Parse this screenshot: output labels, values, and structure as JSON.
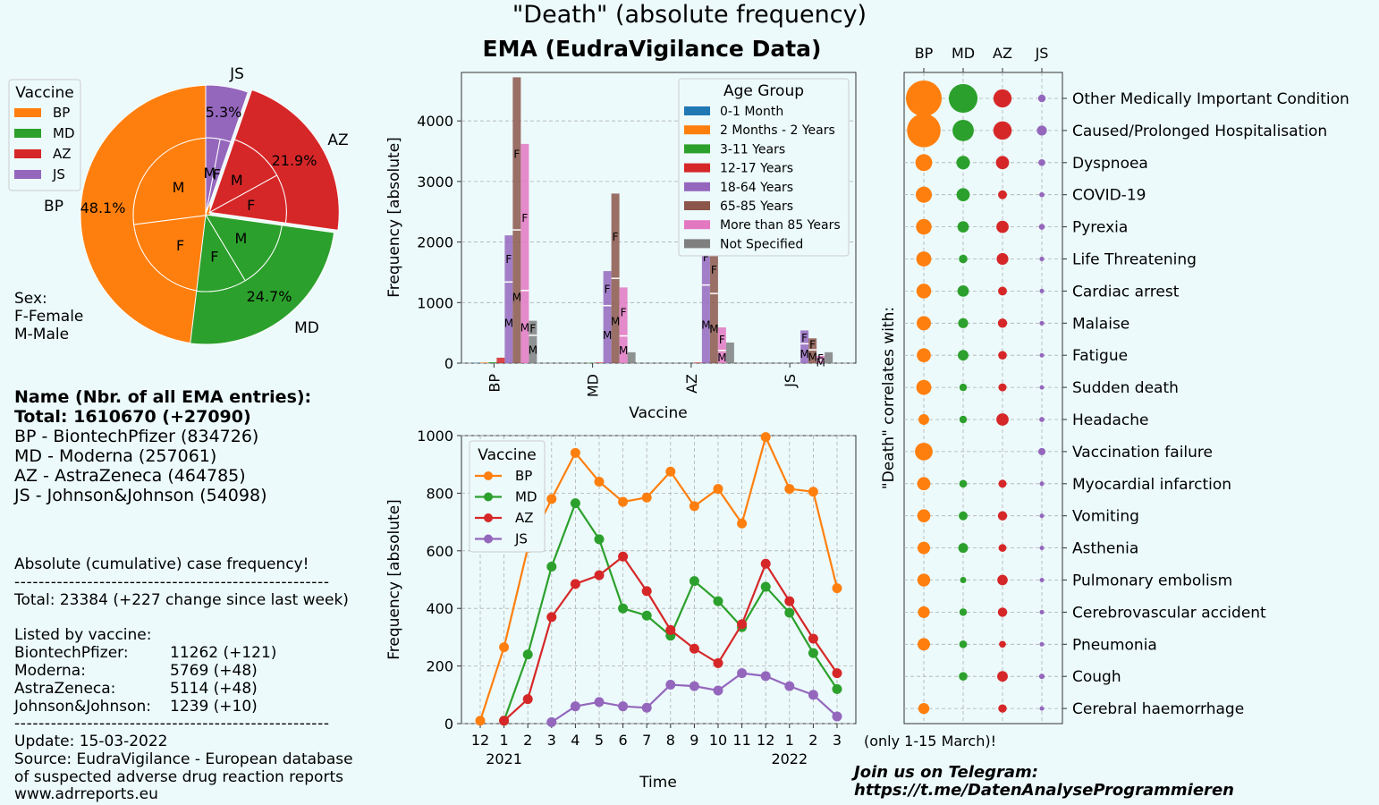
{
  "header": {
    "title": "\"Death\" (absolute frequency)",
    "subtitle": "EMA (EudraVigilance Data)"
  },
  "colors": {
    "BP": "#ff7f0e",
    "MD": "#2ca02c",
    "AZ": "#d62728",
    "JS": "#9467bd",
    "age": [
      "#1f77b4",
      "#ff7f0e",
      "#2ca02c",
      "#d62728",
      "#9467bd",
      "#8c564b",
      "#e377c2",
      "#7f7f7f"
    ]
  },
  "info": {
    "sex_label": "Sex:",
    "sex_f": "F-Female",
    "sex_m": "M-Male",
    "name_header": "Name  (Nbr. of all EMA entries):",
    "total": "Total: 1610670 (+27090)",
    "vaccines": [
      "BP - BiontechPfizer (834726)",
      "MD - Moderna (257061)",
      "AZ - AstraZeneca (464785)",
      "JS - Johnson&Johnson (54098)"
    ],
    "cumulative_label": "Absolute (cumulative) case frequency!",
    "separator": "----------------------------------------------------",
    "total_cases": "Total: 23384 (+227 change since last week)",
    "listed_by": "Listed by vaccine:",
    "by_vaccine": [
      {
        "name": "BiontechPfizer:",
        "value": "11262 (+121)"
      },
      {
        "name": "Moderna:",
        "value": "5769 (+48)"
      },
      {
        "name": "AstraZeneca:",
        "value": "5114 (+48)"
      },
      {
        "name": "Johnson&Johnson:",
        "value": "1239 (+10)"
      }
    ],
    "update": "Update: 15-03-2022",
    "source1": "Source: EudraVigilance - European database",
    "source2": "of suspected adverse drug reaction reports",
    "source3": "www.adrreports.eu",
    "telegram1": "Join us on Telegram:",
    "telegram2": "https://t.me/DatenAnalyseProgrammieren",
    "march_note": "(only 1-15 March)!"
  },
  "chart_data": [
    {
      "type": "pie",
      "legend_title": "Vaccine",
      "legend_placement": "top-left",
      "outer": [
        {
          "label": "BP",
          "value": 48.1,
          "pct_label": "48.1%"
        },
        {
          "label": "MD",
          "value": 24.7,
          "pct_label": "24.7%"
        },
        {
          "label": "AZ",
          "value": 21.9,
          "pct_label": "21.9%"
        },
        {
          "label": "JS",
          "value": 5.3,
          "pct_label": "5.3%"
        }
      ],
      "inner": [
        {
          "vaccine": "BP",
          "sex": "M",
          "value": 27.0
        },
        {
          "vaccine": "BP",
          "sex": "F",
          "value": 21.1
        },
        {
          "vaccine": "MD",
          "sex": "F",
          "value": 10.5
        },
        {
          "vaccine": "MD",
          "sex": "M",
          "value": 14.2
        },
        {
          "vaccine": "AZ",
          "sex": "F",
          "value": 10.2
        },
        {
          "vaccine": "AZ",
          "sex": "M",
          "value": 11.7
        },
        {
          "vaccine": "JS",
          "sex": "F",
          "value": 2.3
        },
        {
          "vaccine": "JS",
          "sex": "M",
          "value": 3.0
        }
      ]
    },
    {
      "type": "bar",
      "xlabel": "Vaccine",
      "ylabel": "Frequency [absolute]",
      "ylim": [
        0,
        4800
      ],
      "yticks": [
        0,
        1000,
        2000,
        3000,
        4000
      ],
      "grid": true,
      "legend_title": "Age Group",
      "legend_placement": "top-right",
      "categories": [
        "BP",
        "MD",
        "AZ",
        "JS"
      ],
      "series": [
        {
          "name": "0-1 Month",
          "values": [
            5,
            0,
            0,
            0
          ],
          "split": [
            [],
            [],
            [],
            []
          ]
        },
        {
          "name": "2 Months - 2 Years",
          "values": [
            10,
            0,
            0,
            0
          ],
          "split": [
            [],
            [],
            [],
            []
          ]
        },
        {
          "name": "3-11 Years",
          "values": [
            15,
            5,
            0,
            0
          ],
          "split": [
            [],
            [],
            [],
            []
          ]
        },
        {
          "name": "12-17 Years",
          "values": [
            90,
            10,
            10,
            0
          ],
          "split": [
            [],
            [],
            [],
            []
          ]
        },
        {
          "name": "18-64 Years",
          "values": [
            2110,
            1520,
            2220,
            540
          ],
          "split": [
            [
              1340,
              770
            ],
            [
              950,
              570
            ],
            [
              1290,
              930
            ],
            [
              320,
              220
            ]
          ]
        },
        {
          "name": "65-85 Years",
          "values": [
            4720,
            2800,
            1950,
            410
          ],
          "split": [
            [
              2200,
              2520
            ],
            [
              1400,
              1400
            ],
            [
              1150,
              800
            ],
            [
              220,
              190
            ]
          ]
        },
        {
          "name": "More than 85 Years",
          "values": [
            3620,
            1250,
            590,
            120
          ],
          "split": [
            [
              1200,
              2420
            ],
            [
              450,
              800
            ],
            [
              210,
              380
            ],
            [
              50,
              70
            ]
          ]
        },
        {
          "name": "Not Specified",
          "values": [
            700,
            180,
            340,
            180
          ],
          "split": [
            [
              460,
              240
            ],
            [],
            [],
            []
          ]
        }
      ],
      "sex_order": [
        "M",
        "F"
      ]
    },
    {
      "type": "line",
      "xlabel": "Time",
      "ylabel": "Frequency [absolute]",
      "ylim": [
        0,
        1000
      ],
      "yticks": [
        0,
        200,
        400,
        600,
        800,
        1000
      ],
      "grid": true,
      "legend_title": "Vaccine",
      "legend_placement": "top-left",
      "x": [
        "12",
        "1",
        "2",
        "3",
        "4",
        "5",
        "6",
        "7",
        "8",
        "9",
        "10",
        "11",
        "12",
        "1",
        "2",
        "3"
      ],
      "year_labels": [
        {
          "at": 1,
          "label": "2021"
        },
        {
          "at": 13,
          "label": "2022"
        }
      ],
      "series": [
        {
          "name": "BP",
          "values": [
            10,
            265,
            610,
            780,
            940,
            840,
            770,
            785,
            875,
            755,
            815,
            695,
            995,
            815,
            805,
            470
          ]
        },
        {
          "name": "MD",
          "values": [
            null,
            10,
            240,
            545,
            765,
            640,
            400,
            375,
            305,
            495,
            425,
            335,
            475,
            385,
            245,
            120
          ]
        },
        {
          "name": "AZ",
          "values": [
            null,
            10,
            85,
            370,
            485,
            515,
            580,
            460,
            325,
            260,
            210,
            345,
            555,
            425,
            295,
            175
          ]
        },
        {
          "name": "JS",
          "values": [
            null,
            null,
            null,
            5,
            60,
            75,
            60,
            55,
            135,
            130,
            115,
            175,
            165,
            130,
            100,
            25
          ]
        }
      ]
    },
    {
      "type": "scatter",
      "ylabel": "\"Death\" correlates with:",
      "vaccines": [
        "BP",
        "MD",
        "AZ",
        "JS"
      ],
      "legend_placement": "none",
      "grid": true,
      "conditions": [
        {
          "name": "Other Medically Important Condition",
          "values": [
            2950,
            1900,
            760,
            130
          ]
        },
        {
          "name": "Caused/Prolonged Hospitalisation",
          "values": [
            2600,
            1050,
            780,
            230
          ]
        },
        {
          "name": "Dyspnoea",
          "values": [
            650,
            420,
            400,
            110
          ]
        },
        {
          "name": "COVID-19",
          "values": [
            600,
            400,
            180,
            60
          ]
        },
        {
          "name": "Pyrexia",
          "values": [
            560,
            300,
            350,
            80
          ]
        },
        {
          "name": "Life Threatening",
          "values": [
            520,
            170,
            320,
            50
          ]
        },
        {
          "name": "Cardiac arrest",
          "values": [
            500,
            300,
            180,
            40
          ]
        },
        {
          "name": "Malaise",
          "values": [
            470,
            230,
            200,
            50
          ]
        },
        {
          "name": "Fatigue",
          "values": [
            450,
            260,
            170,
            40
          ]
        },
        {
          "name": "Sudden death",
          "values": [
            520,
            130,
            150,
            30
          ]
        },
        {
          "name": "Headache",
          "values": [
            260,
            130,
            350,
            60
          ]
        },
        {
          "name": "Vaccination failure",
          "values": [
            720,
            0,
            0,
            120
          ]
        },
        {
          "name": "Myocardial infarction",
          "values": [
            400,
            140,
            150,
            40
          ]
        },
        {
          "name": "Vomiting",
          "values": [
            390,
            180,
            200,
            30
          ]
        },
        {
          "name": "Asthenia",
          "values": [
            360,
            220,
            140,
            30
          ]
        },
        {
          "name": "Pulmonary embolism",
          "values": [
            380,
            90,
            250,
            40
          ]
        },
        {
          "name": "Cerebrovascular accident",
          "values": [
            320,
            130,
            200,
            40
          ]
        },
        {
          "name": "Pneumonia",
          "values": [
            360,
            140,
            110,
            30
          ]
        },
        {
          "name": "Cough",
          "values": [
            0,
            170,
            260,
            70
          ]
        },
        {
          "name": "Cerebral haemorrhage",
          "values": [
            280,
            0,
            160,
            30
          ]
        }
      ]
    }
  ]
}
